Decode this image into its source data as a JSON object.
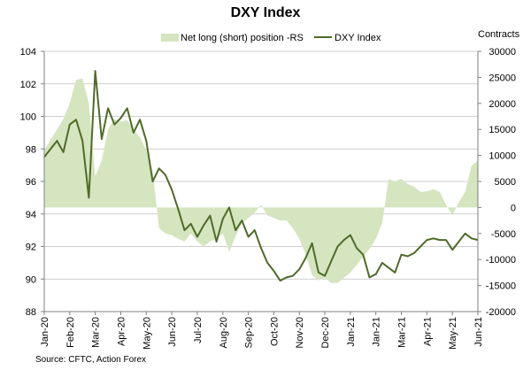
{
  "chart_data": {
    "type": "line",
    "title": "DXY Index",
    "y2label": "Contracts",
    "source": "Source: CFTC, Action Forex",
    "categories": [
      "Jan-20",
      "Feb-20",
      "Mar-20",
      "Apr-20",
      "May-20",
      "Jun-20",
      "Jul-20",
      "Aug-20",
      "Sep-20",
      "Oct-20",
      "Nov-20",
      "Dec-20",
      "Jan-21",
      "Jan-21",
      "Mar-21",
      "Apr-21",
      "May-21",
      "Jun-21"
    ],
    "ylim": [
      88,
      104
    ],
    "yticks": [
      "88",
      "90",
      "92",
      "94",
      "96",
      "98",
      "100",
      "102",
      "104"
    ],
    "y2lim": [
      -20000,
      30000
    ],
    "y2ticks": [
      "-20000",
      "-15000",
      "-10000",
      "-5000",
      "0",
      "5000",
      "10000",
      "15000",
      "20000",
      "25000",
      "30000"
    ],
    "grid": "horizontal",
    "legend_position": "top",
    "colors": {
      "position": "#d4e5bf",
      "dxy": "#4f6a2a",
      "grid": "#bfbfbf"
    },
    "series": [
      {
        "name": "Net long (short) position -RS",
        "axis": "right",
        "type": "area",
        "x": [
          0,
          0.25,
          0.5,
          0.75,
          1,
          1.25,
          1.5,
          1.75,
          2,
          2.25,
          2.5,
          2.75,
          3,
          3.25,
          3.5,
          3.75,
          4,
          4.25,
          4.5,
          4.75,
          5,
          5.25,
          5.5,
          5.75,
          6,
          6.25,
          6.5,
          6.75,
          7,
          7.25,
          7.5,
          7.75,
          8,
          8.25,
          8.5,
          8.75,
          9,
          9.25,
          9.5,
          9.75,
          10,
          10.25,
          10.5,
          10.75,
          11,
          11.25,
          11.5,
          11.75,
          12,
          12.25,
          12.5,
          12.75,
          13,
          13.25,
          13.5,
          13.75,
          14,
          14.25,
          14.5,
          14.75,
          15,
          15.25,
          15.5,
          15.75,
          16,
          16.25,
          16.5,
          16.75,
          17
        ],
        "values": [
          11000,
          13000,
          15000,
          17000,
          20000,
          24500,
          24800,
          20000,
          6000,
          9000,
          15000,
          17000,
          16500,
          16800,
          15000,
          13500,
          11000,
          7000,
          -4000,
          -5000,
          -5300,
          -6000,
          -6500,
          -5000,
          -6500,
          -7500,
          -6500,
          -6000,
          -5000,
          -8500,
          -5500,
          -3000,
          -2000,
          -1000,
          500,
          -1500,
          -2000,
          -2500,
          -2500,
          -4000,
          -6000,
          -9000,
          -13000,
          -14000,
          -13500,
          -14500,
          -14500,
          -13500,
          -12500,
          -11000,
          -9500,
          -8000,
          -6000,
          -3000,
          5500,
          5000,
          5500,
          4500,
          4000,
          3000,
          3100,
          3500,
          3000,
          500,
          -1500,
          1000,
          3000,
          8000,
          9000
        ]
      },
      {
        "name": "DXY Index",
        "axis": "left",
        "type": "line",
        "x": [
          0,
          0.25,
          0.5,
          0.75,
          1,
          1.25,
          1.5,
          1.75,
          2,
          2.25,
          2.5,
          2.75,
          3,
          3.25,
          3.5,
          3.75,
          4,
          4.25,
          4.5,
          4.75,
          5,
          5.25,
          5.5,
          5.75,
          6,
          6.25,
          6.5,
          6.75,
          7,
          7.25,
          7.5,
          7.75,
          8,
          8.25,
          8.5,
          8.75,
          9,
          9.25,
          9.5,
          9.75,
          10,
          10.25,
          10.5,
          10.75,
          11,
          11.25,
          11.5,
          11.75,
          12,
          12.25,
          12.5,
          12.75,
          13,
          13.25,
          13.5,
          13.75,
          14,
          14.25,
          14.5,
          14.75,
          15,
          15.25,
          15.5,
          15.75,
          16,
          16.25,
          16.5,
          16.75,
          17
        ],
        "values": [
          97.5,
          98,
          98.5,
          97.8,
          99.5,
          99.8,
          98.5,
          95,
          102.8,
          98.6,
          100.5,
          99.5,
          99.9,
          100.5,
          99.0,
          99.8,
          98.5,
          96.0,
          96.8,
          96.4,
          95.5,
          94.3,
          93.0,
          93.4,
          92.6,
          93.3,
          93.9,
          92.3,
          93.7,
          94.4,
          93.0,
          93.6,
          92.6,
          93.0,
          91.9,
          91.0,
          90.5,
          89.9,
          90.1,
          90.2,
          90.6,
          91.3,
          92.2,
          90.4,
          90.2,
          91.1,
          92.0,
          92.4,
          92.7,
          91.9,
          91.5,
          90.1,
          90.3,
          91.0,
          90.7,
          90.4,
          91.5,
          91.4,
          91.6,
          92.0,
          92.4,
          92.5,
          92.4,
          92.4,
          91.8,
          92.3,
          92.8,
          92.5,
          92.4
        ]
      }
    ]
  }
}
